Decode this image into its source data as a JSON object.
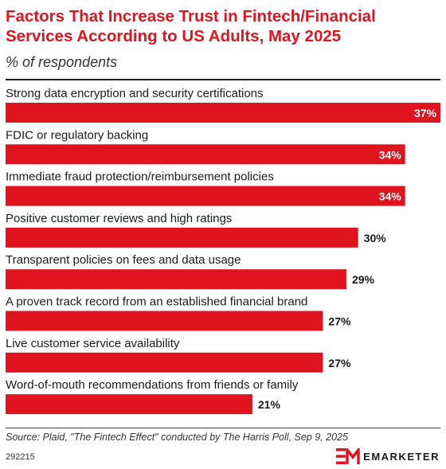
{
  "header": {
    "title": "Factors That Increase Trust in Fintech/Financial Services According to US Adults, May 2025",
    "subtitle": "% of respondents"
  },
  "chart_data": {
    "type": "bar",
    "orientation": "horizontal",
    "categories": [
      "Strong data encryption and security certifications",
      "FDIC or regulatory backing",
      "Immediate fraud protection/reimbursement policies",
      "Positive customer reviews and high ratings",
      "Transparent policies on fees and data usage",
      "A proven track record from an established financial brand",
      "Live customer service availability",
      "Word-of-mouth recommendations from friends or family"
    ],
    "values": [
      37,
      34,
      34,
      30,
      29,
      27,
      27,
      21
    ],
    "value_labels": [
      "37%",
      "34%",
      "34%",
      "30%",
      "29%",
      "27%",
      "27%",
      "21%"
    ],
    "xlim": [
      0,
      37
    ],
    "bar_color": "#e0141e",
    "grid": false,
    "legend": "none"
  },
  "footer": {
    "source": "Source: Plaid, \"The Fintech Effect\" conducted by The Harris Poll, Sep 9, 2025",
    "chart_id": "292215",
    "brand_name": "EMARKETER",
    "brand_logo_icon": "em-logo-icon"
  }
}
